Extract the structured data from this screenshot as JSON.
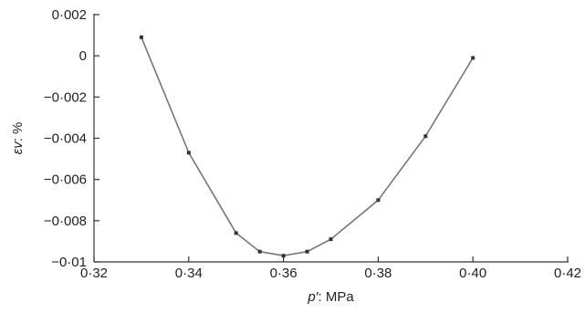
{
  "chart_data": {
    "type": "line",
    "xlabel_var": "p′",
    "xlabel_unit": ": MPa",
    "ylabel_var": "εv",
    "ylabel_unit": ": %",
    "xlim": [
      0.32,
      0.42
    ],
    "ylim": [
      -0.01,
      0.002
    ],
    "x_ticks": [
      0.32,
      0.34,
      0.36,
      0.38,
      0.4,
      0.42
    ],
    "x_tick_labels": [
      "0·32",
      "0·34",
      "0·36",
      "0·38",
      "0·40",
      "0·42"
    ],
    "y_ticks": [
      0.002,
      0,
      -0.002,
      -0.004,
      -0.006,
      -0.008,
      -0.01
    ],
    "y_tick_labels": [
      "0·002",
      "0",
      "−0·002",
      "−0·004",
      "−0·006",
      "−0·008",
      "−0·01"
    ],
    "grid": false,
    "series": [
      {
        "x": [
          0.33,
          0.34,
          0.35,
          0.355,
          0.36,
          0.365,
          0.37,
          0.38,
          0.39,
          0.4
        ],
        "y": [
          0.0009,
          -0.0047,
          -0.0086,
          -0.0095,
          -0.0097,
          -0.0095,
          -0.0089,
          -0.007,
          -0.0039,
          -0.0001
        ],
        "color": "#777777",
        "marker_color": "#333333"
      }
    ]
  }
}
